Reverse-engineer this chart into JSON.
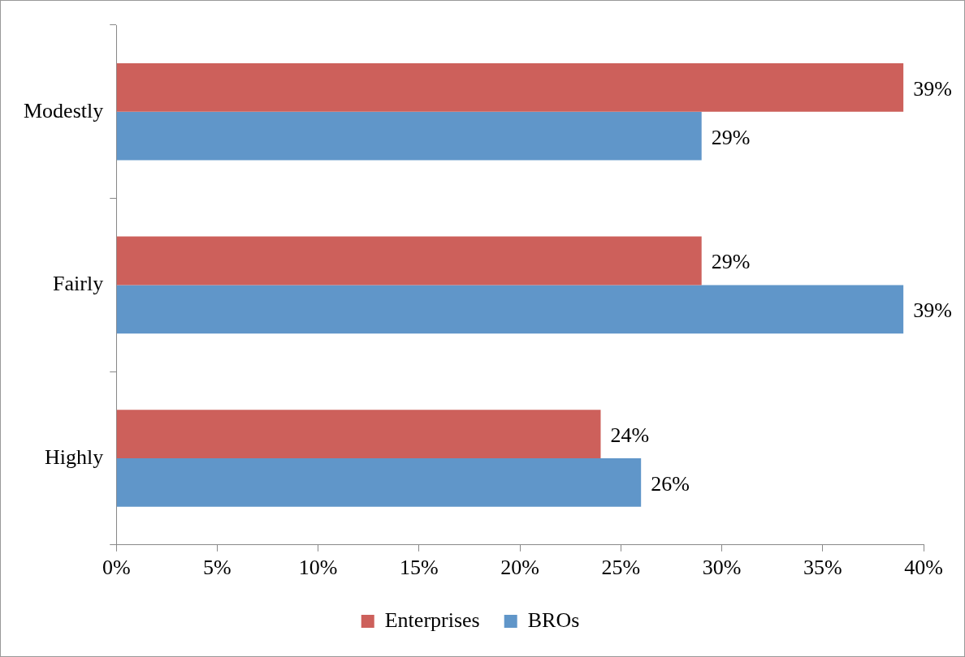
{
  "chart_data": {
    "type": "bar",
    "orientation": "horizontal",
    "categories": [
      "Modestly",
      "Fairly",
      "Highly"
    ],
    "series": [
      {
        "name": "Enterprises",
        "color": "#cd605b",
        "values": [
          39,
          29,
          24
        ],
        "value_labels": [
          "39%",
          "29%",
          "24%"
        ]
      },
      {
        "name": "BROs",
        "color": "#6096c9",
        "values": [
          29,
          39,
          26
        ],
        "value_labels": [
          "29%",
          "39%",
          "26%"
        ]
      }
    ],
    "xlim": [
      0,
      40
    ],
    "xticks": [
      {
        "value": 0,
        "label": "0%"
      },
      {
        "value": 5,
        "label": "5%"
      },
      {
        "value": 10,
        "label": "10%"
      },
      {
        "value": 15,
        "label": "15%"
      },
      {
        "value": 20,
        "label": "20%"
      },
      {
        "value": 25,
        "label": "25%"
      },
      {
        "value": 30,
        "label": "30%"
      },
      {
        "value": 35,
        "label": "35%"
      },
      {
        "value": 40,
        "label": "40%"
      }
    ],
    "grid": false,
    "legend": "bottom"
  }
}
